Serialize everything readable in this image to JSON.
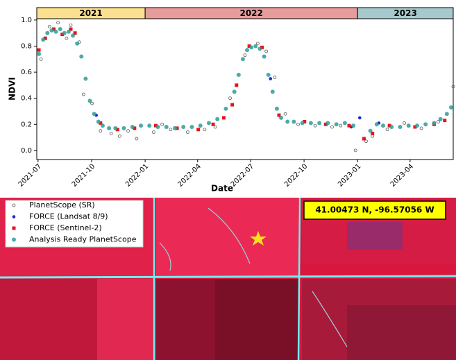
{
  "chart_data": {
    "type": "scatter",
    "x_label": "Date",
    "y_label": "NDVI",
    "xlim": [
      2021.49,
      2023.45
    ],
    "ylim": [
      -0.07,
      1.01
    ],
    "xticks": [
      {
        "value": 2021.496,
        "label": "2021-07"
      },
      {
        "value": 2021.748,
        "label": "2021-10"
      },
      {
        "value": 2022.0,
        "label": "2022-01"
      },
      {
        "value": 2022.247,
        "label": "2022-04"
      },
      {
        "value": 2022.496,
        "label": "2022-07"
      },
      {
        "value": 2022.748,
        "label": "2022-10"
      },
      {
        "value": 2023.0,
        "label": "2023-01"
      },
      {
        "value": 2023.247,
        "label": "2023-04"
      }
    ],
    "yticks": [
      {
        "value": 0,
        "label": "0.0"
      },
      0.2,
      0.4,
      0.6,
      0.8,
      {
        "value": 1,
        "label": "1.0"
      }
    ],
    "year_bands": [
      {
        "label": "2021",
        "start": 2021.49,
        "end": 2022.0,
        "color": "#fbe08f"
      },
      {
        "label": "2022",
        "start": 2022.0,
        "end": 2023.0,
        "color": "#e79c9c"
      },
      {
        "label": "2023",
        "start": 2023.0,
        "end": 2023.45,
        "color": "#a6c9cd"
      }
    ],
    "series": [
      {
        "name": "PlanetScope (SR)",
        "marker": "open-circle",
        "color": "#555555",
        "x": [
          2021.51,
          2021.55,
          2021.59,
          2021.63,
          2021.65,
          2021.69,
          2021.71,
          2021.75,
          2021.79,
          2021.84,
          2021.88,
          2021.92,
          2021.96,
          2022.04,
          2022.08,
          2022.12,
          2022.2,
          2022.28,
          2022.33,
          2022.4,
          2022.47,
          2022.53,
          2022.57,
          2022.61,
          2022.66,
          2022.72,
          2022.8,
          2022.88,
          2022.92,
          2022.99,
          2023.04,
          2023.07,
          2023.14,
          2023.22,
          2023.3,
          2023.38,
          2023.45
        ],
        "values": [
          0.7,
          0.95,
          0.98,
          0.86,
          0.96,
          0.83,
          0.43,
          0.36,
          0.15,
          0.13,
          0.11,
          0.15,
          0.09,
          0.14,
          0.2,
          0.16,
          0.14,
          0.16,
          0.18,
          0.4,
          0.73,
          0.82,
          0.76,
          0.56,
          0.28,
          0.2,
          0.19,
          0.18,
          0.19,
          0.0,
          0.07,
          0.11,
          0.16,
          0.21,
          0.17,
          0.22,
          0.49
        ]
      },
      {
        "name": "FORCE (Landsat 8/9)",
        "marker": "dot",
        "color": "#1a2ad0",
        "x": [
          2021.77,
          2022.59,
          2022.97,
          2023.01,
          2023.1
        ],
        "values": [
          0.27,
          0.55,
          0.18,
          0.25,
          0.21
        ]
      },
      {
        "name": "FORCE (Sentinel-2)",
        "marker": "square",
        "color": "#e8141c",
        "x": [
          2021.5,
          2021.53,
          2021.57,
          2021.61,
          2021.65,
          2021.67,
          2021.79,
          2021.87,
          2021.95,
          2022.05,
          2022.15,
          2022.25,
          2022.32,
          2022.37,
          2022.41,
          2022.43,
          2022.49,
          2022.55,
          2022.63,
          2022.75,
          2022.85,
          2022.96,
          2023.03,
          2023.07,
          2023.15,
          2023.27,
          2023.36,
          2023.41
        ],
        "values": [
          0.77,
          0.86,
          0.93,
          0.89,
          0.93,
          0.9,
          0.21,
          0.16,
          0.17,
          0.19,
          0.17,
          0.16,
          0.2,
          0.25,
          0.35,
          0.5,
          0.8,
          0.79,
          0.27,
          0.22,
          0.2,
          0.19,
          0.09,
          0.13,
          0.19,
          0.18,
          0.2,
          0.23
        ]
      },
      {
        "name": "Analysis Ready PlanetScope",
        "marker": "circle",
        "color": "#2e9c98",
        "x": [
          2021.5,
          2021.52,
          2021.54,
          2021.56,
          2021.58,
          2021.6,
          2021.62,
          2021.64,
          2021.66,
          2021.68,
          2021.7,
          2021.72,
          2021.74,
          2021.76,
          2021.78,
          2021.8,
          2021.83,
          2021.86,
          2021.9,
          2021.94,
          2021.98,
          2022.02,
          2022.06,
          2022.1,
          2022.14,
          2022.18,
          2022.22,
          2022.26,
          2022.3,
          2022.34,
          2022.38,
          2022.42,
          2022.44,
          2022.46,
          2022.48,
          2022.5,
          2022.52,
          2022.54,
          2022.56,
          2022.58,
          2022.6,
          2022.62,
          2022.64,
          2022.67,
          2022.7,
          2022.74,
          2022.78,
          2022.82,
          2022.86,
          2022.9,
          2022.94,
          2022.98,
          2023.06,
          2023.09,
          2023.12,
          2023.16,
          2023.2,
          2023.24,
          2023.28,
          2023.32,
          2023.36,
          2023.39,
          2023.42,
          2023.44
        ],
        "values": [
          0.74,
          0.85,
          0.9,
          0.92,
          0.91,
          0.93,
          0.9,
          0.91,
          0.88,
          0.82,
          0.72,
          0.55,
          0.38,
          0.28,
          0.22,
          0.19,
          0.17,
          0.17,
          0.17,
          0.18,
          0.19,
          0.19,
          0.18,
          0.18,
          0.17,
          0.18,
          0.18,
          0.19,
          0.21,
          0.24,
          0.32,
          0.45,
          0.58,
          0.7,
          0.77,
          0.79,
          0.8,
          0.78,
          0.72,
          0.58,
          0.45,
          0.32,
          0.25,
          0.22,
          0.22,
          0.21,
          0.21,
          0.21,
          0.21,
          0.2,
          0.21,
          0.19,
          0.15,
          0.2,
          0.19,
          0.18,
          0.18,
          0.19,
          0.19,
          0.2,
          0.21,
          0.24,
          0.28,
          0.33
        ]
      }
    ],
    "annotation": "41.00473 N, -96.57056 W"
  }
}
